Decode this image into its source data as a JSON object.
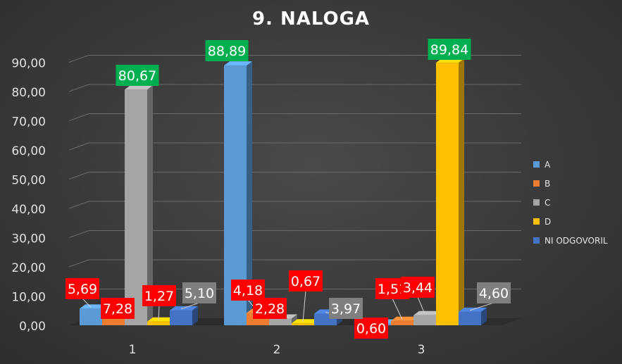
{
  "chart_data": {
    "type": "bar",
    "title": "9. NALOGA",
    "categories": [
      "1",
      "2",
      "3"
    ],
    "series": [
      {
        "name": "A",
        "values": [
          5.69,
          88.89,
          0.6
        ],
        "labels": [
          "5,69",
          "88,89",
          "0,60"
        ],
        "color": "#5b9bd5"
      },
      {
        "name": "B",
        "values": [
          7.28,
          4.18,
          1.51
        ],
        "labels": [
          "7,28",
          "4,18",
          "1,51"
        ],
        "color": "#ed7d31"
      },
      {
        "name": "C",
        "values": [
          80.67,
          2.28,
          3.44
        ],
        "labels": [
          "80,67",
          "2,28",
          "3,44"
        ],
        "color": "#a5a5a5"
      },
      {
        "name": "D",
        "values": [
          1.27,
          0.67,
          89.84
        ],
        "labels": [
          "1,27",
          "0,67",
          "89,84"
        ],
        "color": "#ffc000"
      },
      {
        "name": "NI ODGOVORIL",
        "values": [
          5.1,
          3.97,
          4.6
        ],
        "labels": [
          "5,10",
          "3,97",
          "4,60"
        ],
        "color": "#4472c4"
      }
    ],
    "label_colors": [
      [
        "#ff0000",
        "#00b050",
        "#ff0000"
      ],
      [
        "#ff0000",
        "#ff0000",
        "#ff0000"
      ],
      [
        "#00b050",
        "#ff0000",
        "#ff0000"
      ],
      [
        "#ff0000",
        "#ff0000",
        "#00b050"
      ],
      [
        "#7f7f7f",
        "#7f7f7f",
        "#7f7f7f"
      ]
    ],
    "ylim": [
      0,
      90
    ],
    "yticks": [
      "0,00",
      "10,00",
      "20,00",
      "30,00",
      "40,00",
      "50,00",
      "60,00",
      "70,00",
      "80,00",
      "90,00"
    ],
    "xlabel": "",
    "ylabel": "",
    "grid": true,
    "legend_position": "right"
  }
}
